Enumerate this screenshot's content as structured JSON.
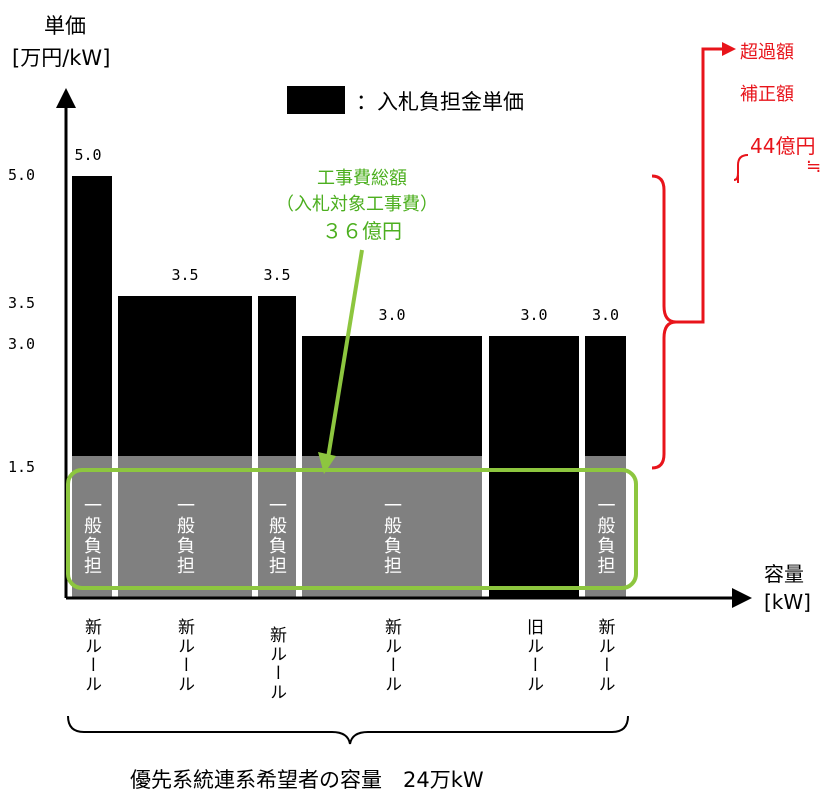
{
  "axes": {
    "y_title_line1": "単価",
    "y_title_line2": "[万円/kW]",
    "x_title_line1": "容量",
    "x_title_line2": "[kW]",
    "y_ticks": [
      "5.0",
      "3.5",
      "3.0",
      "1.5"
    ]
  },
  "legend": {
    "label": "：入札負担金単価",
    "swatch_color": "#000000"
  },
  "red_note": {
    "line1": "超過額",
    "line2": "補正額",
    "line3": "44億円",
    "line4": "≒",
    "color": "#e8141b"
  },
  "green_note": {
    "line1": "工事費総額",
    "line2": "（入札対象工事費）",
    "line3": "３６億円",
    "color": "#4caf1f"
  },
  "general_burden_label": "一般負担",
  "chart_data": {
    "type": "bar",
    "ylim": [
      0,
      5.3
    ],
    "general_burden_level": 1.5,
    "bars": [
      {
        "value": 5.0,
        "label": "5.0",
        "rule": "新ルール",
        "general_burden": true
      },
      {
        "value": 3.5,
        "label": "3.5",
        "rule": "新ルール",
        "general_burden": true
      },
      {
        "value": 3.5,
        "label": "3.5",
        "rule": "新ルール",
        "general_burden": true
      },
      {
        "value": 3.0,
        "label": "3.0",
        "rule": "新ルール",
        "general_burden": true
      },
      {
        "value": 3.0,
        "label": "3.0",
        "rule": "旧ルール",
        "general_burden": false
      },
      {
        "value": 3.0,
        "label": "3.0",
        "rule": "新ルール",
        "general_burden": true
      }
    ]
  },
  "footer_caption": "優先系統連系希望者の容量　24万kW"
}
